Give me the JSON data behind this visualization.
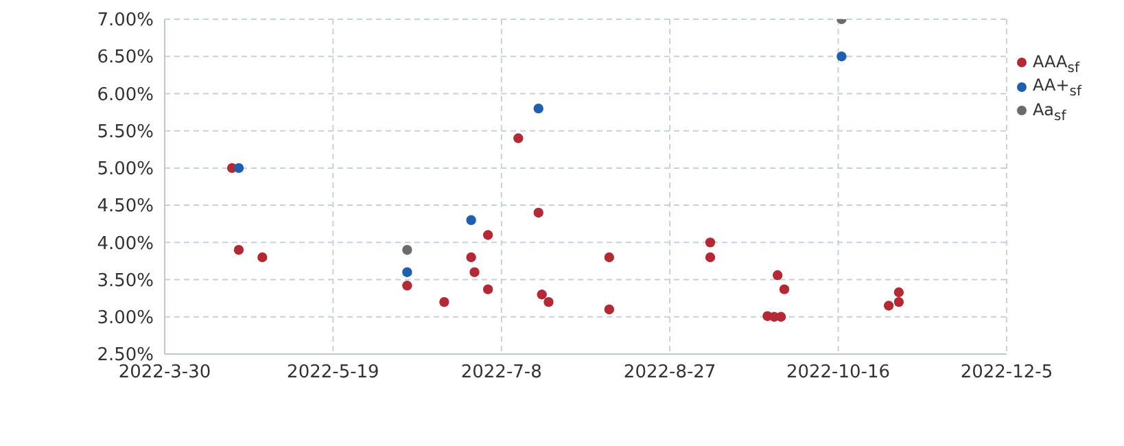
{
  "chart_data": {
    "type": "scatter",
    "marker": "circle",
    "grid": true,
    "legend": "top right",
    "xlim": [
      "2022-03-30",
      "2022-12-05"
    ],
    "xticks": [
      {
        "value": "2022-03-30",
        "label": "2022-3-30"
      },
      {
        "value": "2022-05-19",
        "label": "2022-5-19"
      },
      {
        "value": "2022-07-08",
        "label": "2022-7-8"
      },
      {
        "value": "2022-08-27",
        "label": "2022-8-27"
      },
      {
        "value": "2022-10-16",
        "label": "2022-10-16"
      },
      {
        "value": "2022-12-05",
        "label": "2022-12-5"
      }
    ],
    "ylim": [
      2.5,
      7
    ],
    "yticks": [
      {
        "value": 2.5,
        "label": "2.50%"
      },
      {
        "value": 3,
        "label": "3.00%"
      },
      {
        "value": 3.5,
        "label": "3.50%"
      },
      {
        "value": 4,
        "label": "4.00%"
      },
      {
        "value": 4.5,
        "label": "4.50%"
      },
      {
        "value": 5,
        "label": "5.00%"
      },
      {
        "value": 5.5,
        "label": "5.50%"
      },
      {
        "value": 6,
        "label": "6.00%"
      },
      {
        "value": 6.5,
        "label": "6.50%"
      },
      {
        "value": 7,
        "label": "7.00%"
      }
    ],
    "series": [
      {
        "name": "AAA$_{sf}$",
        "color": "#b22a35",
        "x": [
          "2022-04-19",
          "2022-04-21",
          "2022-04-28",
          "2022-06-10",
          "2022-06-21",
          "2022-06-29",
          "2022-06-30",
          "2022-07-04",
          "2022-07-04",
          "2022-07-13",
          "2022-07-19",
          "2022-07-20",
          "2022-07-22",
          "2022-08-09",
          "2022-08-09",
          "2022-09-08",
          "2022-09-08",
          "2022-09-28",
          "2022-09-30",
          "2022-09-25",
          "2022-09-27",
          "2022-09-29",
          "2022-10-31",
          "2022-11-03",
          "2022-11-03"
        ],
        "values": [
          5.0,
          3.9,
          3.8,
          3.42,
          3.2,
          3.8,
          3.6,
          4.1,
          3.37,
          5.4,
          4.4,
          3.3,
          3.2,
          3.8,
          3.1,
          4.0,
          3.8,
          3.56,
          3.37,
          3.01,
          3.0,
          3.0,
          3.15,
          3.2,
          3.33
        ]
      },
      {
        "name": "AA+$_{sf}$",
        "color": "#1f5fad",
        "x": [
          "2022-04-21",
          "2022-06-10",
          "2022-06-29",
          "2022-07-19",
          "2022-10-17"
        ],
        "values": [
          5.0,
          3.6,
          4.3,
          5.8,
          6.5
        ]
      },
      {
        "name": "Aa$_{sf}$",
        "color": "#6b6b6b",
        "x": [
          "2022-06-10",
          "2022-10-17"
        ],
        "values": [
          3.9,
          7.0
        ]
      }
    ]
  }
}
